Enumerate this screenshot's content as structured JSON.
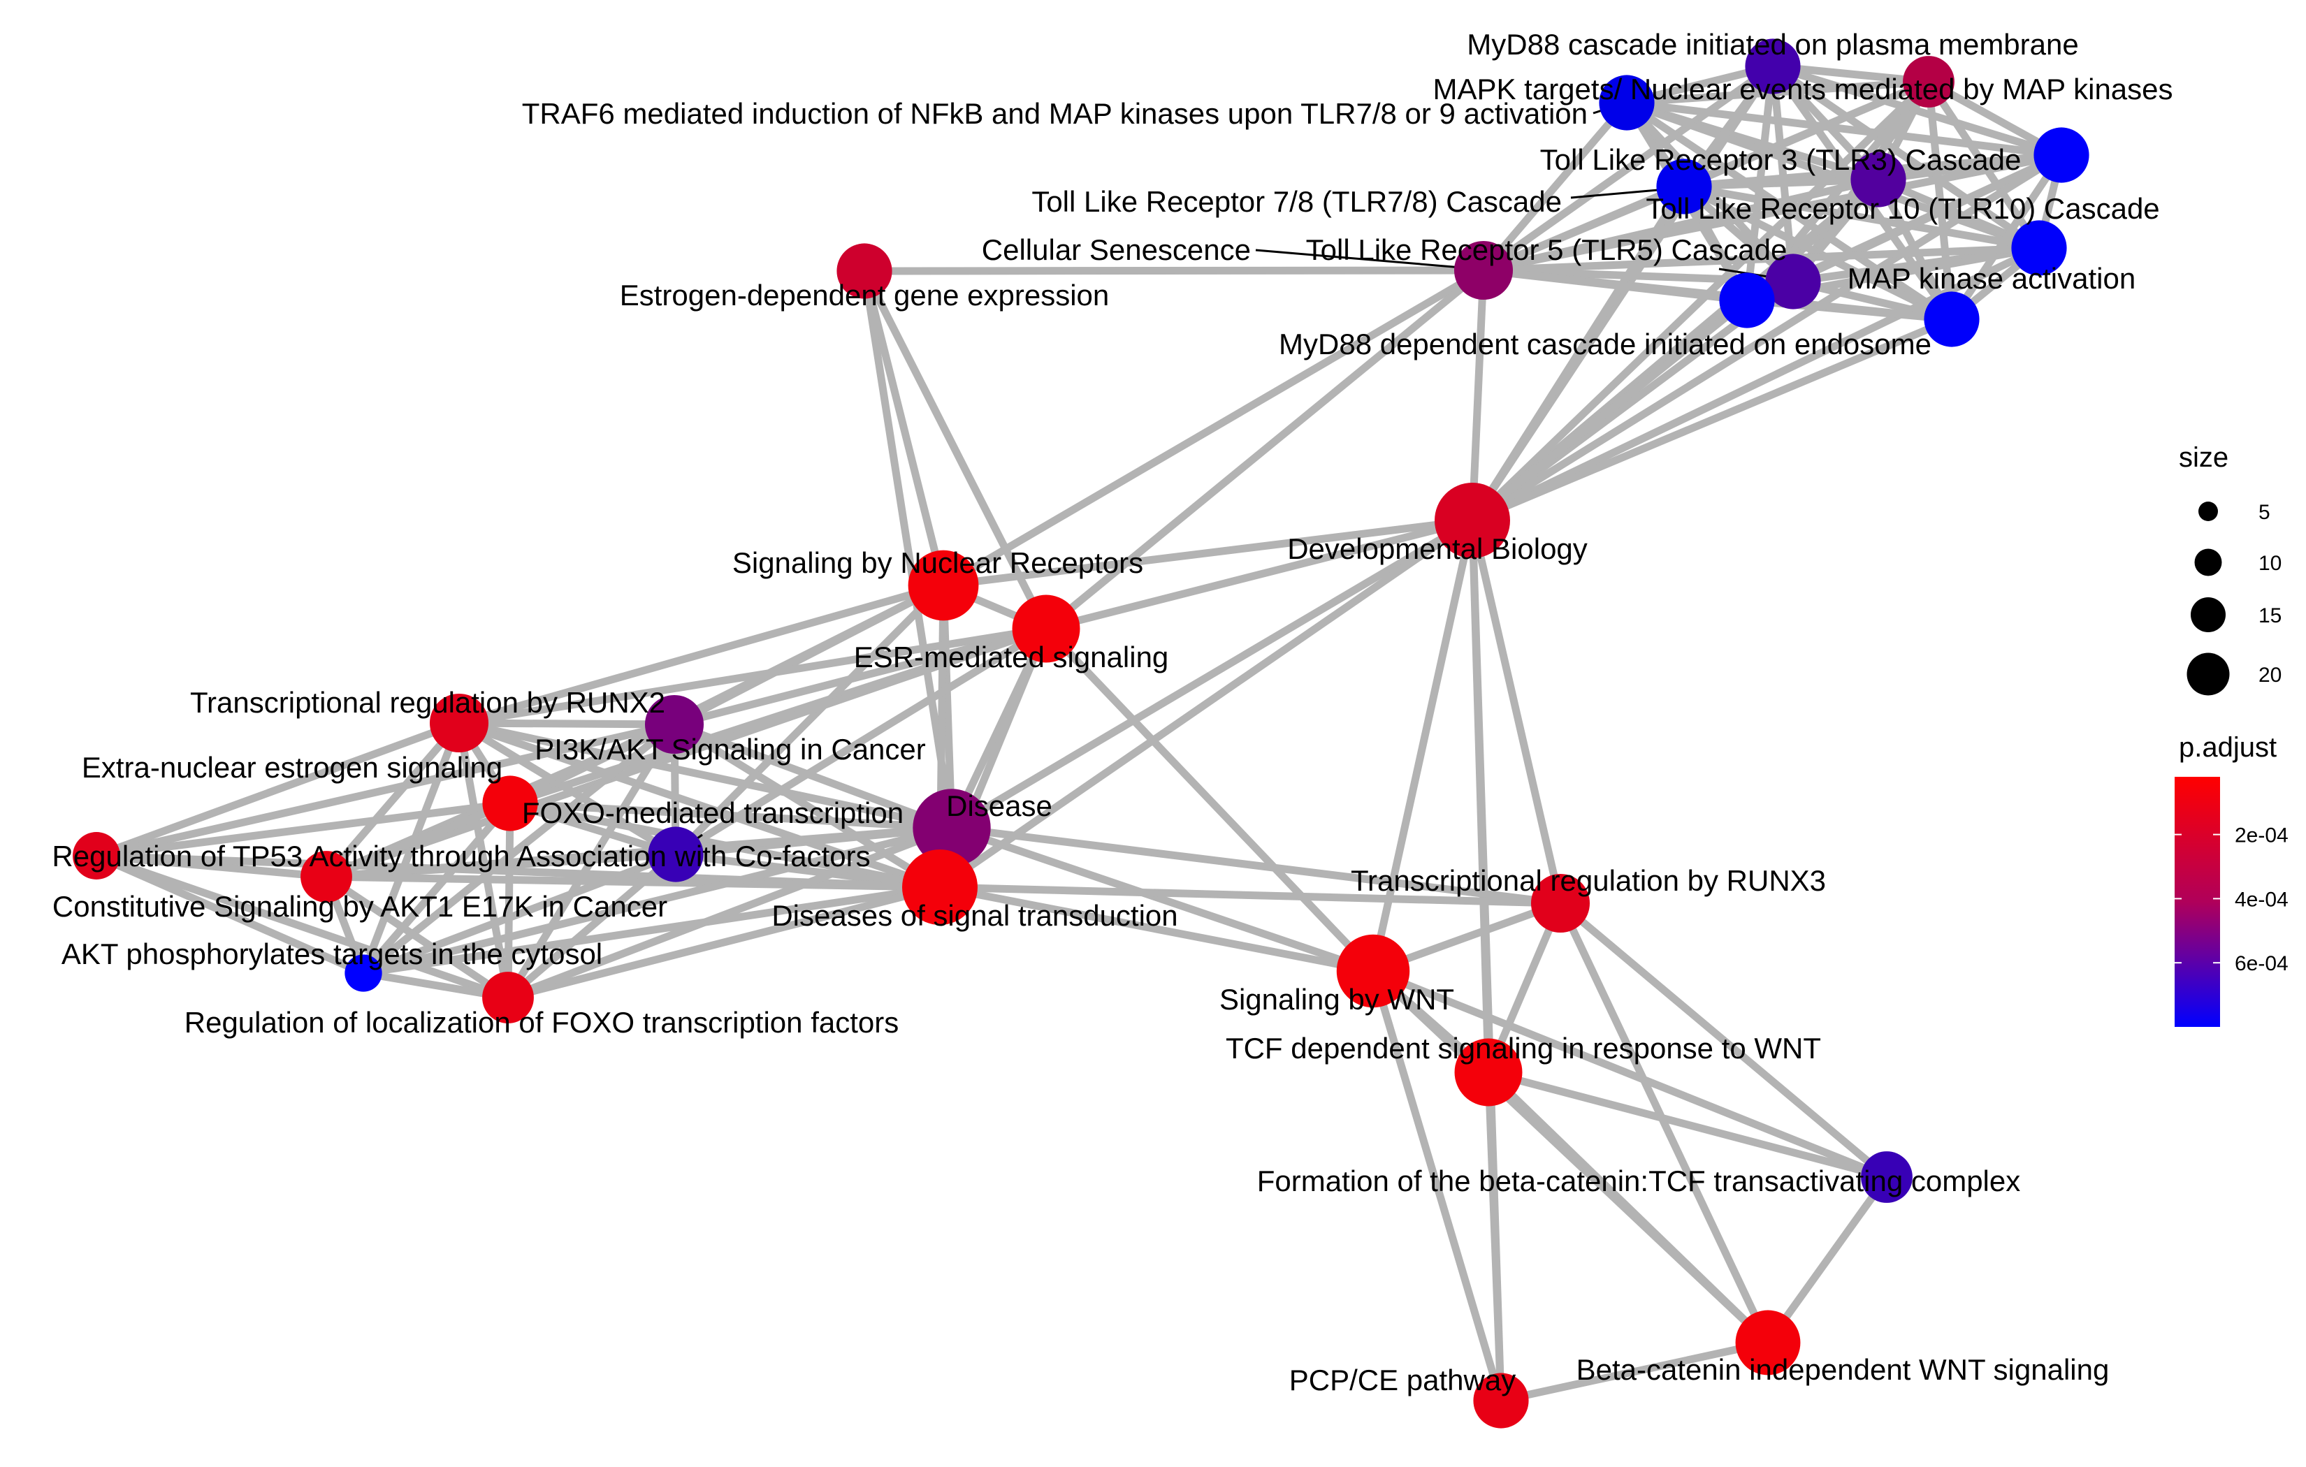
{
  "legend": {
    "size": {
      "title": "size",
      "entries": [
        {
          "label": "5",
          "value": 5
        },
        {
          "label": "10",
          "value": 10
        },
        {
          "label": "15",
          "value": 15
        },
        {
          "label": "20",
          "value": 20
        }
      ]
    },
    "color": {
      "title": "p.adjust",
      "low_color": "#FF0000",
      "high_color": "#0000FF",
      "ticks": [
        {
          "label": "2e-04",
          "value": 0.0002
        },
        {
          "label": "4e-04",
          "value": 0.0004
        },
        {
          "label": "6e-04",
          "value": 0.0006
        }
      ]
    }
  },
  "network": {
    "edge_color": "#B3B3B3",
    "nodes": [
      {
        "id": "myd88pm",
        "label": "MyD88 cascade initiated on plasma membrane",
        "size": 6,
        "p_adjust": 0.00052
      },
      {
        "id": "mapkt",
        "label": "MAPK targets/ Nuclear events mediated by MAP kinases",
        "size": 5,
        "p_adjust": 0.00022
      },
      {
        "id": "traf6",
        "label": "TRAF6 mediated induction of NFkB and MAP kinases upon TLR7/8 or 9 activation",
        "size": 6,
        "p_adjust": 0.0007
      },
      {
        "id": "tlr3",
        "label": "Toll Like Receptor 3 (TLR3) Cascade",
        "size": 6,
        "p_adjust": 0.00048
      },
      {
        "id": "tlr78",
        "label": "Toll Like Receptor 7/8 (TLR7/8) Cascade",
        "size": 6,
        "p_adjust": 0.00072
      },
      {
        "id": "tlr10",
        "label": "Toll Like Receptor 10 (TLR10) Cascade",
        "size": 6,
        "p_adjust": 0.00075
      },
      {
        "id": "tlr9",
        "label": "",
        "size": 6,
        "p_adjust": 0.00075
      },
      {
        "id": "senes",
        "label": "Cellular Senescence",
        "size": 7,
        "p_adjust": 0.00032
      },
      {
        "id": "tlr5",
        "label": "Toll Like Receptor 5 (TLR5) Cascade",
        "size": 6,
        "p_adjust": 0.0005
      },
      {
        "id": "mapka",
        "label": "MAP kinase activation",
        "size": 6,
        "p_adjust": 0.00075
      },
      {
        "id": "estro",
        "label": "Estrogen-dependent gene expression",
        "size": 6,
        "p_adjust": 0.00015
      },
      {
        "id": "myd88e",
        "label": "MyD88 dependent cascade initiated on endosome",
        "size": 6,
        "p_adjust": 0.00075
      },
      {
        "id": "devbio",
        "label": "Developmental Biology",
        "size": 13,
        "p_adjust": 0.00012
      },
      {
        "id": "nucrec",
        "label": "Signaling by Nuclear Receptors",
        "size": 11,
        "p_adjust": 5e-05
      },
      {
        "id": "esr",
        "label": "ESR-mediated signaling",
        "size": 10,
        "p_adjust": 5e-05
      },
      {
        "id": "runx2",
        "label": "Transcriptional regulation by RUNX2",
        "size": 7,
        "p_adjust": 0.0001
      },
      {
        "id": "pi3k",
        "label": "PI3K/AKT Signaling in Cancer",
        "size": 7,
        "p_adjust": 0.00038
      },
      {
        "id": "extranuc",
        "label": "Extra-nuclear estrogen signaling",
        "size": 6,
        "p_adjust": 5e-05
      },
      {
        "id": "disease",
        "label": "Disease",
        "size": 14,
        "p_adjust": 0.00035
      },
      {
        "id": "foxo",
        "label": "FOXO-mediated transcription",
        "size": 6,
        "p_adjust": 0.00055
      },
      {
        "id": "tp53",
        "label": "Regulation of TP53 Activity through Association with Co-factors",
        "size": 4,
        "p_adjust": 0.0001
      },
      {
        "id": "akt1",
        "label": "Constitutive Signaling by AKT1 E17K in Cancer",
        "size": 5,
        "p_adjust": 8e-05
      },
      {
        "id": "dst",
        "label": "Diseases of signal transduction",
        "size": 13,
        "p_adjust": 5e-05
      },
      {
        "id": "runx3",
        "label": "Transcriptional regulation by RUNX3",
        "size": 7,
        "p_adjust": 0.0001
      },
      {
        "id": "aktphos",
        "label": "AKT phosphorylates targets in the cytosol",
        "size": 2,
        "p_adjust": 0.00078
      },
      {
        "id": "wnt",
        "label": "Signaling by WNT",
        "size": 12,
        "p_adjust": 5e-05
      },
      {
        "id": "foxoloc",
        "label": "Regulation of localization of FOXO transcription factors",
        "size": 5,
        "p_adjust": 8e-05
      },
      {
        "id": "tcf",
        "label": "TCF dependent signaling in response to WNT",
        "size": 10,
        "p_adjust": 5e-05
      },
      {
        "id": "betacat",
        "label": "Formation of the beta-catenin:TCF transactivating complex",
        "size": 5,
        "p_adjust": 0.00055
      },
      {
        "id": "bcind",
        "label": "Beta-catenin independent WNT signaling",
        "size": 9,
        "p_adjust": 5e-05
      },
      {
        "id": "pcp",
        "label": "PCP/CE pathway",
        "size": 6,
        "p_adjust": 8e-05
      }
    ],
    "edges": [
      [
        "myd88pm",
        "mapkt"
      ],
      [
        "myd88pm",
        "traf6"
      ],
      [
        "myd88pm",
        "tlr3"
      ],
      [
        "myd88pm",
        "tlr78"
      ],
      [
        "myd88pm",
        "tlr10"
      ],
      [
        "myd88pm",
        "tlr9"
      ],
      [
        "myd88pm",
        "tlr5"
      ],
      [
        "myd88pm",
        "mapka"
      ],
      [
        "myd88pm",
        "myd88e"
      ],
      [
        "myd88pm",
        "senes"
      ],
      [
        "myd88pm",
        "devbio"
      ],
      [
        "mapkt",
        "traf6"
      ],
      [
        "mapkt",
        "tlr3"
      ],
      [
        "mapkt",
        "tlr78"
      ],
      [
        "mapkt",
        "tlr10"
      ],
      [
        "mapkt",
        "tlr9"
      ],
      [
        "mapkt",
        "tlr5"
      ],
      [
        "mapkt",
        "mapka"
      ],
      [
        "mapkt",
        "myd88e"
      ],
      [
        "mapkt",
        "senes"
      ],
      [
        "mapkt",
        "devbio"
      ],
      [
        "traf6",
        "tlr3"
      ],
      [
        "traf6",
        "tlr78"
      ],
      [
        "traf6",
        "tlr10"
      ],
      [
        "traf6",
        "tlr9"
      ],
      [
        "traf6",
        "tlr5"
      ],
      [
        "traf6",
        "mapka"
      ],
      [
        "traf6",
        "myd88e"
      ],
      [
        "traf6",
        "senes"
      ],
      [
        "tlr3",
        "tlr78"
      ],
      [
        "tlr3",
        "tlr10"
      ],
      [
        "tlr3",
        "tlr9"
      ],
      [
        "tlr3",
        "tlr5"
      ],
      [
        "tlr3",
        "mapka"
      ],
      [
        "tlr3",
        "myd88e"
      ],
      [
        "tlr3",
        "senes"
      ],
      [
        "tlr3",
        "devbio"
      ],
      [
        "tlr78",
        "tlr10"
      ],
      [
        "tlr78",
        "tlr9"
      ],
      [
        "tlr78",
        "tlr5"
      ],
      [
        "tlr78",
        "mapka"
      ],
      [
        "tlr78",
        "myd88e"
      ],
      [
        "tlr78",
        "senes"
      ],
      [
        "tlr78",
        "devbio"
      ],
      [
        "tlr10",
        "tlr9"
      ],
      [
        "tlr10",
        "tlr5"
      ],
      [
        "tlr10",
        "mapka"
      ],
      [
        "tlr10",
        "myd88e"
      ],
      [
        "tlr10",
        "senes"
      ],
      [
        "tlr10",
        "devbio"
      ],
      [
        "tlr9",
        "tlr5"
      ],
      [
        "tlr9",
        "mapka"
      ],
      [
        "tlr9",
        "myd88e"
      ],
      [
        "tlr9",
        "senes"
      ],
      [
        "tlr9",
        "devbio"
      ],
      [
        "tlr5",
        "mapka"
      ],
      [
        "tlr5",
        "myd88e"
      ],
      [
        "tlr5",
        "senes"
      ],
      [
        "tlr5",
        "devbio"
      ],
      [
        "mapka",
        "myd88e"
      ],
      [
        "mapka",
        "senes"
      ],
      [
        "mapka",
        "devbio"
      ],
      [
        "myd88e",
        "senes"
      ],
      [
        "myd88e",
        "devbio"
      ],
      [
        "senes",
        "estro"
      ],
      [
        "senes",
        "nucrec"
      ],
      [
        "senes",
        "esr"
      ],
      [
        "senes",
        "devbio"
      ],
      [
        "estro",
        "nucrec"
      ],
      [
        "estro",
        "esr"
      ],
      [
        "estro",
        "disease"
      ],
      [
        "devbio",
        "nucrec"
      ],
      [
        "devbio",
        "esr"
      ],
      [
        "devbio",
        "disease"
      ],
      [
        "devbio",
        "dst"
      ],
      [
        "devbio",
        "wnt"
      ],
      [
        "devbio",
        "tcf"
      ],
      [
        "devbio",
        "runx3"
      ],
      [
        "devbio",
        "pcp"
      ],
      [
        "nucrec",
        "esr"
      ],
      [
        "nucrec",
        "runx2"
      ],
      [
        "nucrec",
        "pi3k"
      ],
      [
        "nucrec",
        "extranuc"
      ],
      [
        "nucrec",
        "disease"
      ],
      [
        "nucrec",
        "dst"
      ],
      [
        "nucrec",
        "foxo"
      ],
      [
        "esr",
        "runx2"
      ],
      [
        "esr",
        "pi3k"
      ],
      [
        "esr",
        "extranuc"
      ],
      [
        "esr",
        "disease"
      ],
      [
        "esr",
        "dst"
      ],
      [
        "esr",
        "foxo"
      ],
      [
        "esr",
        "wnt"
      ],
      [
        "esr",
        "akt1"
      ],
      [
        "runx2",
        "pi3k"
      ],
      [
        "runx2",
        "extranuc"
      ],
      [
        "runx2",
        "disease"
      ],
      [
        "runx2",
        "dst"
      ],
      [
        "runx2",
        "foxo"
      ],
      [
        "runx2",
        "tp53"
      ],
      [
        "runx2",
        "akt1"
      ],
      [
        "runx2",
        "aktphos"
      ],
      [
        "runx2",
        "foxoloc"
      ],
      [
        "pi3k",
        "extranuc"
      ],
      [
        "pi3k",
        "disease"
      ],
      [
        "pi3k",
        "dst"
      ],
      [
        "pi3k",
        "foxo"
      ],
      [
        "pi3k",
        "akt1"
      ],
      [
        "pi3k",
        "aktphos"
      ],
      [
        "pi3k",
        "foxoloc"
      ],
      [
        "pi3k",
        "tp53"
      ],
      [
        "extranuc",
        "disease"
      ],
      [
        "extranuc",
        "dst"
      ],
      [
        "extranuc",
        "foxo"
      ],
      [
        "extranuc",
        "tp53"
      ],
      [
        "extranuc",
        "akt1"
      ],
      [
        "extranuc",
        "aktphos"
      ],
      [
        "extranuc",
        "foxoloc"
      ],
      [
        "foxo",
        "disease"
      ],
      [
        "foxo",
        "dst"
      ],
      [
        "foxo",
        "akt1"
      ],
      [
        "foxo",
        "aktphos"
      ],
      [
        "foxo",
        "foxoloc"
      ],
      [
        "tp53",
        "akt1"
      ],
      [
        "tp53",
        "aktphos"
      ],
      [
        "tp53",
        "foxoloc"
      ],
      [
        "tp53",
        "dst"
      ],
      [
        "akt1",
        "aktphos"
      ],
      [
        "akt1",
        "foxoloc"
      ],
      [
        "akt1",
        "dst"
      ],
      [
        "akt1",
        "disease"
      ],
      [
        "aktphos",
        "foxoloc"
      ],
      [
        "aktphos",
        "dst"
      ],
      [
        "aktphos",
        "disease"
      ],
      [
        "foxoloc",
        "dst"
      ],
      [
        "foxoloc",
        "disease"
      ],
      [
        "disease",
        "dst"
      ],
      [
        "disease",
        "wnt"
      ],
      [
        "disease",
        "runx3"
      ],
      [
        "dst",
        "wnt"
      ],
      [
        "dst",
        "runx3"
      ],
      [
        "wnt",
        "runx3"
      ],
      [
        "wnt",
        "tcf"
      ],
      [
        "wnt",
        "betacat"
      ],
      [
        "wnt",
        "bcind"
      ],
      [
        "wnt",
        "pcp"
      ],
      [
        "tcf",
        "runx3"
      ],
      [
        "tcf",
        "betacat"
      ],
      [
        "tcf",
        "bcind"
      ],
      [
        "tcf",
        "pcp"
      ],
      [
        "runx3",
        "betacat"
      ],
      [
        "runx3",
        "bcind"
      ],
      [
        "betacat",
        "bcind"
      ],
      [
        "bcind",
        "pcp"
      ]
    ]
  }
}
